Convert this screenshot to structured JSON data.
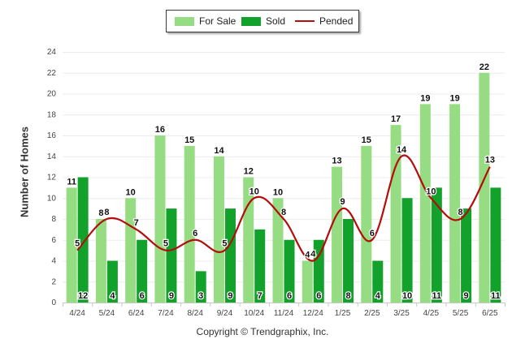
{
  "chart_data": {
    "type": "bar",
    "title": "",
    "xlabel": "",
    "ylabel": "Number of Homes",
    "ylim": [
      0,
      24
    ],
    "yticks": [
      0,
      2,
      4,
      6,
      8,
      10,
      12,
      14,
      16,
      18,
      20,
      22,
      24
    ],
    "grid": true,
    "legend_position": "top-center",
    "categories": [
      "4/24",
      "5/24",
      "6/24",
      "7/24",
      "8/24",
      "9/24",
      "10/24",
      "11/24",
      "12/24",
      "1/25",
      "2/25",
      "3/25",
      "4/25",
      "5/25",
      "6/25"
    ],
    "series": [
      {
        "name": "For Sale",
        "kind": "bar",
        "color": "#96dc82",
        "values": [
          11,
          8,
          10,
          16,
          15,
          14,
          12,
          10,
          4,
          13,
          15,
          17,
          19,
          19,
          22
        ]
      },
      {
        "name": "Sold",
        "kind": "bar",
        "color": "#12a12a",
        "values": [
          12,
          4,
          6,
          9,
          3,
          9,
          7,
          6,
          6,
          8,
          4,
          10,
          11,
          9,
          11
        ]
      },
      {
        "name": "Pended",
        "kind": "line",
        "color": "#b40d0d",
        "values": [
          5,
          8,
          7,
          5,
          6,
          5,
          10,
          8,
          4,
          9,
          6,
          14,
          10,
          8,
          13
        ]
      }
    ]
  },
  "legend": {
    "items": [
      {
        "label": "For Sale"
      },
      {
        "label": "Sold"
      },
      {
        "label": "Pended"
      }
    ]
  },
  "footer": {
    "copyright": "Copyright © Trendgraphix, Inc."
  }
}
